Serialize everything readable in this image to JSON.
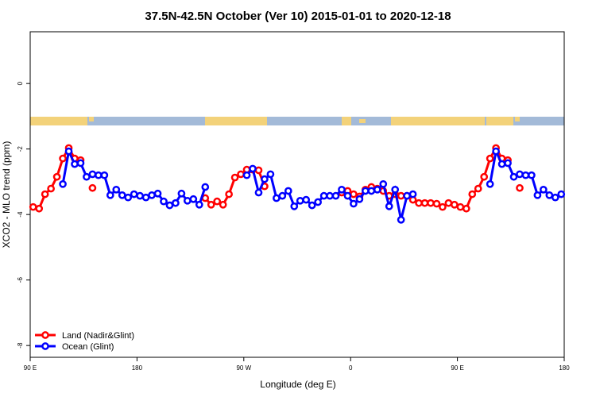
{
  "chart_data": {
    "type": "line",
    "title": "37.5N-42.5N October (Ver 10)   2015-01-01 to 2020-12-18",
    "x_label": "Longitude (deg E)",
    "y_label": "XCO2 - MLO trend (ppm)",
    "xlim": [
      90,
      540
    ],
    "xticks": [
      {
        "value": 90,
        "label": "90 E"
      },
      180,
      {
        "value": 270,
        "label": "90 W"
      },
      {
        "value": 360,
        "label": "0"
      },
      {
        "value": 450,
        "label": "90 E"
      },
      {
        "value": 540,
        "label": "180"
      }
    ],
    "ylim": [
      -8.36,
      1.58
    ],
    "yticks": [
      0,
      -2,
      -4,
      -6,
      -8
    ],
    "legend": "bottom-left",
    "x": [
      92.5,
      97.5,
      102.5,
      107.5,
      112.5,
      117.5,
      122.5,
      127.5,
      132.5,
      137.5,
      142.5,
      147.5,
      152.5,
      157.5,
      162.5,
      167.5,
      172.5,
      177.5,
      182.5,
      187.5,
      192.5,
      197.5,
      202.5,
      207.5,
      212.5,
      217.5,
      222.5,
      227.5,
      232.5,
      237.5,
      242.5,
      247.5,
      252.5,
      257.5,
      262.5,
      267.5,
      272.5,
      277.5,
      282.5,
      287.5,
      292.5,
      297.5,
      302.5,
      307.5,
      312.5,
      317.5,
      322.5,
      327.5,
      332.5,
      337.5,
      342.5,
      347.5,
      352.5,
      357.5,
      362.5,
      367.5,
      372.5,
      377.5,
      382.5,
      387.5,
      392.5,
      397.5,
      402.5,
      407.5,
      412.5,
      417.5,
      422.5,
      427.5,
      432.5,
      437.5,
      442.5,
      447.5,
      452.5,
      457.5,
      462.5,
      467.5,
      472.5,
      477.5,
      482.5,
      487.5,
      492.5,
      497.5,
      502.5,
      507.5,
      512.5,
      517.5,
      522.5,
      527.5,
      532.5,
      537.5
    ],
    "series": [
      {
        "name": "Land (Nadir&Glint)",
        "color": "#ff0000",
        "values": [
          -3.77,
          -3.82,
          -3.38,
          -3.21,
          -2.85,
          -2.29,
          -1.97,
          -2.29,
          -2.34,
          null,
          -3.19,
          null,
          null,
          null,
          null,
          null,
          null,
          null,
          null,
          null,
          null,
          null,
          null,
          null,
          null,
          null,
          null,
          null,
          null,
          -3.5,
          -3.7,
          -3.6,
          -3.7,
          -3.38,
          -2.87,
          -2.77,
          -2.63,
          -2.63,
          -2.65,
          -3.14,
          null,
          null,
          null,
          null,
          null,
          null,
          null,
          null,
          null,
          null,
          null,
          null,
          -3.33,
          -3.28,
          -3.38,
          -3.45,
          -3.24,
          -3.16,
          -3.21,
          -3.28,
          -3.43,
          -3.38,
          -3.43,
          -3.43,
          -3.55,
          -3.65,
          -3.65,
          -3.65,
          -3.67,
          -3.77,
          -3.65,
          -3.7,
          -3.77,
          -3.82,
          -3.38,
          -3.21,
          -2.85,
          -2.29,
          -1.97,
          -2.29,
          -2.34,
          null,
          -3.19,
          null,
          null,
          null,
          null,
          null,
          null,
          null
        ]
      },
      {
        "name": "Ocean (Glint)",
        "color": "#0000ff",
        "values": [
          null,
          null,
          null,
          null,
          null,
          -3.07,
          -2.07,
          -2.46,
          -2.43,
          -2.85,
          -2.77,
          -2.8,
          -2.8,
          -3.41,
          -3.24,
          -3.41,
          -3.48,
          -3.38,
          -3.43,
          -3.48,
          -3.41,
          -3.36,
          -3.6,
          -3.72,
          -3.65,
          -3.36,
          -3.58,
          -3.53,
          -3.7,
          -3.16,
          null,
          null,
          null,
          null,
          null,
          null,
          -2.8,
          -2.6,
          -3.33,
          -2.92,
          -2.77,
          -3.5,
          -3.43,
          -3.28,
          -3.75,
          -3.58,
          -3.55,
          -3.72,
          -3.62,
          -3.43,
          -3.43,
          -3.43,
          -3.24,
          -3.43,
          -3.67,
          -3.53,
          -3.28,
          -3.28,
          -3.24,
          -3.07,
          -3.75,
          -3.24,
          -4.16,
          -3.43,
          -3.38,
          null,
          null,
          null,
          null,
          null,
          null,
          null,
          null,
          null,
          null,
          null,
          null,
          -3.07,
          -2.07,
          -2.46,
          -2.43,
          -2.85,
          -2.77,
          -2.8,
          -2.8,
          -3.41,
          -3.24,
          -3.41,
          -3.48,
          -3.38
        ]
      }
    ]
  }
}
